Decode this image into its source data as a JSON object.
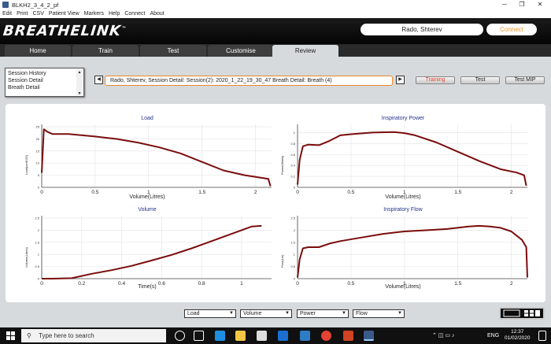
{
  "window": {
    "title": "BLKH2_3_4_2_pf",
    "min": "─",
    "max": "❐",
    "close": "✕"
  },
  "menu": [
    "Edit",
    "Print",
    "CSV",
    "Patient View",
    "Markers",
    "Help",
    "Connect",
    "About"
  ],
  "app": {
    "logo": "BREATHELINK",
    "tm": "™",
    "user": "Rado, Shterev",
    "connect": "Connect"
  },
  "tabs": [
    "Home",
    "Train",
    "Test",
    "Customise",
    "Review"
  ],
  "active_tab": "Review",
  "review": {
    "list": [
      "Session History",
      "Session Detail",
      "Breath Detail"
    ],
    "path": "Rado, Shterev, Session Detail: Session(2): 2020_1_22_19_30_47 Breath Detail: Breath (4)",
    "buttons": {
      "training": "Training",
      "test": "Test",
      "test_mip": "Test MIP"
    },
    "training_color": "#e5432f"
  },
  "chart_data": [
    {
      "type": "line",
      "title": "Load",
      "xlabel": "Volume(Litres)",
      "ylabel": "Load(cmH2O)",
      "xlim": [
        0,
        2.15
      ],
      "ylim": [
        0,
        26
      ],
      "xticks": [
        "0",
        "0.5",
        "1",
        "1.5",
        "2"
      ],
      "yticks": [
        "0",
        "5",
        "10",
        "15",
        "20",
        "25"
      ],
      "color": "#7a0c0c",
      "x": [
        0.0,
        0.02,
        0.05,
        0.1,
        0.2,
        0.25,
        0.3,
        0.5,
        0.7,
        0.9,
        1.1,
        1.3,
        1.5,
        1.7,
        1.9,
        2.05,
        2.12,
        2.14
      ],
      "y": [
        6,
        24,
        23,
        22,
        22,
        22,
        21.8,
        21,
        20,
        18.5,
        16.5,
        14,
        10.5,
        7,
        5,
        4,
        3.5,
        0.5
      ]
    },
    {
      "type": "line",
      "title": "Inspiratory Power",
      "xlabel": "Volume(Litres)",
      "ylabel": "Power(Watts)",
      "xlim": [
        0,
        2.15
      ],
      "ylim": [
        0,
        1.15
      ],
      "xticks": [
        "0",
        "0.5",
        "1",
        "1.5",
        "2"
      ],
      "yticks": [
        "0",
        "0.2",
        "0.4",
        "0.6",
        "0.8",
        "1"
      ],
      "color": "#7a0c0c",
      "x": [
        0.0,
        0.02,
        0.05,
        0.1,
        0.2,
        0.3,
        0.4,
        0.5,
        0.7,
        0.9,
        1.0,
        1.1,
        1.3,
        1.5,
        1.7,
        1.9,
        2.05,
        2.12,
        2.14
      ],
      "y": [
        0.05,
        0.5,
        0.75,
        0.78,
        0.77,
        0.85,
        0.95,
        0.97,
        1.0,
        1.01,
        0.99,
        0.95,
        0.82,
        0.65,
        0.48,
        0.33,
        0.27,
        0.22,
        0.03
      ]
    },
    {
      "type": "line",
      "title": "Volume",
      "xlabel": "Time(s)",
      "ylabel": "Volume(Litres)",
      "xlim": [
        0,
        1.15
      ],
      "ylim": [
        0,
        2.6
      ],
      "xticks": [
        "0",
        "0.2",
        "0.4",
        "0.6",
        "0.8",
        "1"
      ],
      "yticks": [
        "0",
        "0.5",
        "1",
        "1.5",
        "2",
        "2.5"
      ],
      "color": "#7a0c0c",
      "x": [
        0.0,
        0.05,
        0.15,
        0.25,
        0.35,
        0.45,
        0.55,
        0.65,
        0.75,
        0.85,
        0.95,
        1.05,
        1.1
      ],
      "y": [
        0.0,
        0.0,
        0.02,
        0.2,
        0.35,
        0.53,
        0.75,
        0.98,
        1.25,
        1.55,
        1.85,
        2.15,
        2.18
      ]
    },
    {
      "type": "line",
      "title": "Inspiratory Flow",
      "xlabel": "Volume(Litres)",
      "ylabel": "Flow(L/s)",
      "xlim": [
        0,
        2.15
      ],
      "ylim": [
        0,
        2.6
      ],
      "xticks": [
        "0",
        "0.5",
        "1",
        "1.5",
        "2"
      ],
      "yticks": [
        "0",
        "0.5",
        "1",
        "1.5",
        "2",
        "2.5"
      ],
      "color": "#7a0c0c",
      "x": [
        0.0,
        0.02,
        0.05,
        0.1,
        0.2,
        0.3,
        0.4,
        0.6,
        0.8,
        1.0,
        1.2,
        1.4,
        1.6,
        1.7,
        1.8,
        1.9,
        2.0,
        2.1,
        2.14,
        2.15
      ],
      "y": [
        0.05,
        0.8,
        1.25,
        1.3,
        1.3,
        1.45,
        1.55,
        1.7,
        1.85,
        1.95,
        2.0,
        2.05,
        2.15,
        2.18,
        2.15,
        2.1,
        1.95,
        1.6,
        1.3,
        0.05
      ]
    }
  ],
  "selectors": [
    "Load",
    "Volume",
    "Power",
    "Flow"
  ],
  "taskbar": {
    "search": "Type here to search",
    "lang": "ENG",
    "time": "12:37",
    "date": "01/02/2020"
  }
}
